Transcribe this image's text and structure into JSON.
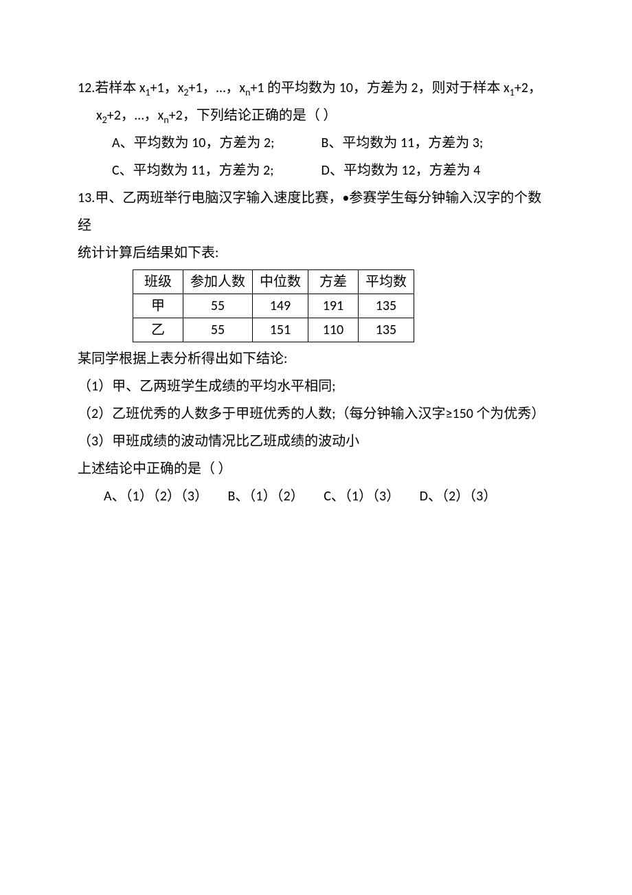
{
  "q12": {
    "line1_pre": "12.若样本 x",
    "line1_mid1": "+1，x",
    "line1_mid2": "+1，…，x",
    "line1_mid3": "+1 的平均数为 10，方差为 2，则对于样本 x",
    "line1_end": "+2，",
    "line2_pre": "x",
    "line2_mid": "+2，…，x",
    "line2_end": "+2，下列结论正确的是（    ）",
    "sub1": "1",
    "sub2": "2",
    "subn": "n",
    "optA": "A、平均数为 10，方差为 2;",
    "optB": "B、平均数为 11，方差为 3;",
    "optC": "C、平均数为 11，方差为 2;",
    "optD": "D、平均数为 12，方差为 4"
  },
  "q13": {
    "intro1": "13.甲、乙两班举行电脑汉字输入速度比赛，•参赛学生每分钟输入汉字的个数经",
    "intro2": "统计计算后结果如下表:",
    "table": {
      "columns": [
        "班级",
        "参加人数",
        "中位数",
        "方差",
        "平均数"
      ],
      "rows": [
        [
          "甲",
          "55",
          "149",
          "191",
          "135"
        ],
        [
          "乙",
          "55",
          "151",
          "110",
          "135"
        ]
      ]
    },
    "analysis_intro": "某同学根据上表分析得出如下结论:",
    "stmt1": "（1）甲、乙两班学生成绩的平均水平相同;",
    "stmt2": "（2）乙班优秀的人数多于甲班优秀的人数;（每分钟输入汉字≥150 个为优秀）",
    "stmt3": "（3）甲班成绩的波动情况比乙班成绩的波动小",
    "conclusion": "上述结论中正确的是（    ）",
    "optA": "A、（1）（2）（3）",
    "optB": "B、（1）（2）",
    "optC": "C、（1）（3）",
    "optD": "D、（2）（3）"
  }
}
